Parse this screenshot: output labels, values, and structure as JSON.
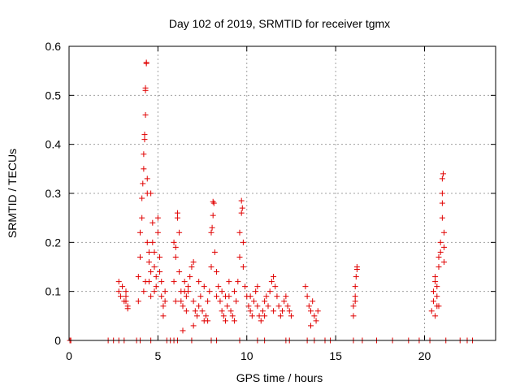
{
  "chart_data": {
    "type": "scatter",
    "title": "Day 102 of 2019, SRMTID for receiver tgmx",
    "xlabel": "GPS time / hours",
    "ylabel": "SRMTID / TECUs",
    "xlim": [
      0,
      24
    ],
    "ylim": [
      0,
      0.6
    ],
    "xticks": [
      0,
      5,
      10,
      15,
      20
    ],
    "yticks": [
      0,
      0.1,
      0.2,
      0.3,
      0.4,
      0.5,
      0.6
    ],
    "grid": true,
    "marker": "+",
    "color": "#e00000",
    "series": [
      {
        "name": "SRMTID",
        "points": [
          [
            0.05,
            0.0
          ],
          [
            0.1,
            0.0
          ],
          [
            2.2,
            0.0
          ],
          [
            2.5,
            0.0
          ],
          [
            2.8,
            0.0
          ],
          [
            3.1,
            0.0
          ],
          [
            3.8,
            0.0
          ],
          [
            4.0,
            0.0
          ],
          [
            4.6,
            0.0
          ],
          [
            5.5,
            0.0
          ],
          [
            5.7,
            0.0
          ],
          [
            5.9,
            0.0
          ],
          [
            6.1,
            0.0
          ],
          [
            6.9,
            0.0
          ],
          [
            8.0,
            0.0
          ],
          [
            8.3,
            0.0
          ],
          [
            9.6,
            0.0
          ],
          [
            10.6,
            0.0
          ],
          [
            11.0,
            0.0
          ],
          [
            12.2,
            0.0
          ],
          [
            12.4,
            0.0
          ],
          [
            13.4,
            0.0
          ],
          [
            13.8,
            0.0
          ],
          [
            14.4,
            0.0
          ],
          [
            14.7,
            0.0
          ],
          [
            16.0,
            0.0
          ],
          [
            16.5,
            0.0
          ],
          [
            17.3,
            0.0
          ],
          [
            18.2,
            0.0
          ],
          [
            19.1,
            0.0
          ],
          [
            19.7,
            0.0
          ],
          [
            20.3,
            0.0
          ],
          [
            21.2,
            0.0
          ],
          [
            22.0,
            0.0
          ],
          [
            22.4,
            0.0
          ],
          [
            22.7,
            0.0
          ],
          [
            2.8,
            0.12
          ],
          [
            2.8,
            0.1
          ],
          [
            2.9,
            0.09
          ],
          [
            3.0,
            0.11
          ],
          [
            3.2,
            0.1
          ],
          [
            3.2,
            0.08
          ],
          [
            3.3,
            0.07
          ],
          [
            3.3,
            0.065
          ],
          [
            3.2,
            0.09
          ],
          [
            3.1,
            0.08
          ],
          [
            3.9,
            0.08
          ],
          [
            3.9,
            0.13
          ],
          [
            4.0,
            0.17
          ],
          [
            4.0,
            0.22
          ],
          [
            4.1,
            0.25
          ],
          [
            4.1,
            0.29
          ],
          [
            4.15,
            0.32
          ],
          [
            4.2,
            0.35
          ],
          [
            4.2,
            0.38
          ],
          [
            4.25,
            0.41
          ],
          [
            4.25,
            0.42
          ],
          [
            4.3,
            0.46
          ],
          [
            4.3,
            0.51
          ],
          [
            4.3,
            0.515
          ],
          [
            4.35,
            0.565
          ],
          [
            4.35,
            0.567
          ],
          [
            4.4,
            0.3
          ],
          [
            4.4,
            0.33
          ],
          [
            4.4,
            0.2
          ],
          [
            4.5,
            0.18
          ],
          [
            4.5,
            0.16
          ],
          [
            4.5,
            0.12
          ],
          [
            4.6,
            0.14
          ],
          [
            4.6,
            0.3
          ],
          [
            4.7,
            0.24
          ],
          [
            4.7,
            0.2
          ],
          [
            4.8,
            0.18
          ],
          [
            4.8,
            0.15
          ],
          [
            4.9,
            0.13
          ],
          [
            4.9,
            0.11
          ],
          [
            5.0,
            0.22
          ],
          [
            5.0,
            0.25
          ],
          [
            5.1,
            0.17
          ],
          [
            5.1,
            0.14
          ],
          [
            5.2,
            0.12
          ],
          [
            5.2,
            0.09
          ],
          [
            5.3,
            0.07
          ],
          [
            5.3,
            0.05
          ],
          [
            5.4,
            0.1
          ],
          [
            5.4,
            0.08
          ],
          [
            4.2,
            0.1
          ],
          [
            4.3,
            0.12
          ],
          [
            4.6,
            0.09
          ],
          [
            4.8,
            0.1
          ],
          [
            5.9,
            0.12
          ],
          [
            5.9,
            0.2
          ],
          [
            6.0,
            0.19
          ],
          [
            6.0,
            0.17
          ],
          [
            6.1,
            0.25
          ],
          [
            6.1,
            0.26
          ],
          [
            6.2,
            0.22
          ],
          [
            6.2,
            0.14
          ],
          [
            6.3,
            0.1
          ],
          [
            6.3,
            0.08
          ],
          [
            6.4,
            0.07
          ],
          [
            6.4,
            0.02
          ],
          [
            6.5,
            0.12
          ],
          [
            6.5,
            0.1
          ],
          [
            6.6,
            0.09
          ],
          [
            6.7,
            0.11
          ],
          [
            6.8,
            0.13
          ],
          [
            6.9,
            0.15
          ],
          [
            7.0,
            0.16
          ],
          [
            7.0,
            0.08
          ],
          [
            7.1,
            0.06
          ],
          [
            7.2,
            0.05
          ],
          [
            7.3,
            0.07
          ],
          [
            7.4,
            0.09
          ],
          [
            7.5,
            0.06
          ],
          [
            7.6,
            0.04
          ],
          [
            7.7,
            0.05
          ],
          [
            7.8,
            0.08
          ],
          [
            7.9,
            0.1
          ],
          [
            8.0,
            0.15
          ],
          [
            8.0,
            0.22
          ],
          [
            8.05,
            0.23
          ],
          [
            8.1,
            0.255
          ],
          [
            8.1,
            0.283
          ],
          [
            8.15,
            0.28
          ],
          [
            8.2,
            0.18
          ],
          [
            8.3,
            0.14
          ],
          [
            8.4,
            0.11
          ],
          [
            8.5,
            0.08
          ],
          [
            8.6,
            0.06
          ],
          [
            8.7,
            0.05
          ],
          [
            8.8,
            0.04
          ],
          [
            8.9,
            0.07
          ],
          [
            9.0,
            0.09
          ],
          [
            9.1,
            0.06
          ],
          [
            9.2,
            0.05
          ],
          [
            9.3,
            0.04
          ],
          [
            9.4,
            0.08
          ],
          [
            9.5,
            0.12
          ],
          [
            9.6,
            0.17
          ],
          [
            9.6,
            0.22
          ],
          [
            9.7,
            0.26
          ],
          [
            9.7,
            0.285
          ],
          [
            9.75,
            0.27
          ],
          [
            9.8,
            0.2
          ],
          [
            9.8,
            0.15
          ],
          [
            9.9,
            0.11
          ],
          [
            10.0,
            0.09
          ],
          [
            10.1,
            0.07
          ],
          [
            10.2,
            0.06
          ],
          [
            10.3,
            0.05
          ],
          [
            10.4,
            0.08
          ],
          [
            10.5,
            0.1
          ],
          [
            10.6,
            0.07
          ],
          [
            10.7,
            0.05
          ],
          [
            10.8,
            0.04
          ],
          [
            10.9,
            0.06
          ],
          [
            11.0,
            0.08
          ],
          [
            11.1,
            0.09
          ],
          [
            11.2,
            0.07
          ],
          [
            11.3,
            0.1
          ],
          [
            11.4,
            0.12
          ],
          [
            11.5,
            0.13
          ],
          [
            11.6,
            0.11
          ],
          [
            11.7,
            0.09
          ],
          [
            11.8,
            0.07
          ],
          [
            11.9,
            0.05
          ],
          [
            12.0,
            0.06
          ],
          [
            12.1,
            0.08
          ],
          [
            12.2,
            0.09
          ],
          [
            12.3,
            0.07
          ],
          [
            12.4,
            0.06
          ],
          [
            12.5,
            0.05
          ],
          [
            6.7,
            0.1
          ],
          [
            7.3,
            0.12
          ],
          [
            7.6,
            0.11
          ],
          [
            8.3,
            0.09
          ],
          [
            8.6,
            0.1
          ],
          [
            9.0,
            0.12
          ],
          [
            9.3,
            0.1
          ],
          [
            10.2,
            0.09
          ],
          [
            10.6,
            0.11
          ],
          [
            11.0,
            0.05
          ],
          [
            11.5,
            0.06
          ],
          [
            6.0,
            0.08
          ],
          [
            6.6,
            0.06
          ],
          [
            7.0,
            0.03
          ],
          [
            7.8,
            0.04
          ],
          [
            8.8,
            0.09
          ],
          [
            13.3,
            0.11
          ],
          [
            13.4,
            0.09
          ],
          [
            13.5,
            0.07
          ],
          [
            13.6,
            0.06
          ],
          [
            13.7,
            0.08
          ],
          [
            13.8,
            0.05
          ],
          [
            13.9,
            0.04
          ],
          [
            14.0,
            0.06
          ],
          [
            13.6,
            0.03
          ],
          [
            16.0,
            0.05
          ],
          [
            16.0,
            0.07
          ],
          [
            16.1,
            0.09
          ],
          [
            16.1,
            0.11
          ],
          [
            16.15,
            0.13
          ],
          [
            16.2,
            0.145
          ],
          [
            16.2,
            0.15
          ],
          [
            16.1,
            0.08
          ],
          [
            20.4,
            0.06
          ],
          [
            20.5,
            0.08
          ],
          [
            20.5,
            0.1
          ],
          [
            20.6,
            0.12
          ],
          [
            20.6,
            0.13
          ],
          [
            20.7,
            0.09
          ],
          [
            20.7,
            0.07
          ],
          [
            20.8,
            0.15
          ],
          [
            20.8,
            0.17
          ],
          [
            20.9,
            0.18
          ],
          [
            20.9,
            0.2
          ],
          [
            21.0,
            0.25
          ],
          [
            21.0,
            0.28
          ],
          [
            21.0,
            0.3
          ],
          [
            21.0,
            0.33
          ],
          [
            21.05,
            0.34
          ],
          [
            21.1,
            0.22
          ],
          [
            21.1,
            0.19
          ],
          [
            21.1,
            0.16
          ],
          [
            20.6,
            0.05
          ],
          [
            20.7,
            0.11
          ],
          [
            20.8,
            0.07
          ]
        ]
      }
    ]
  }
}
